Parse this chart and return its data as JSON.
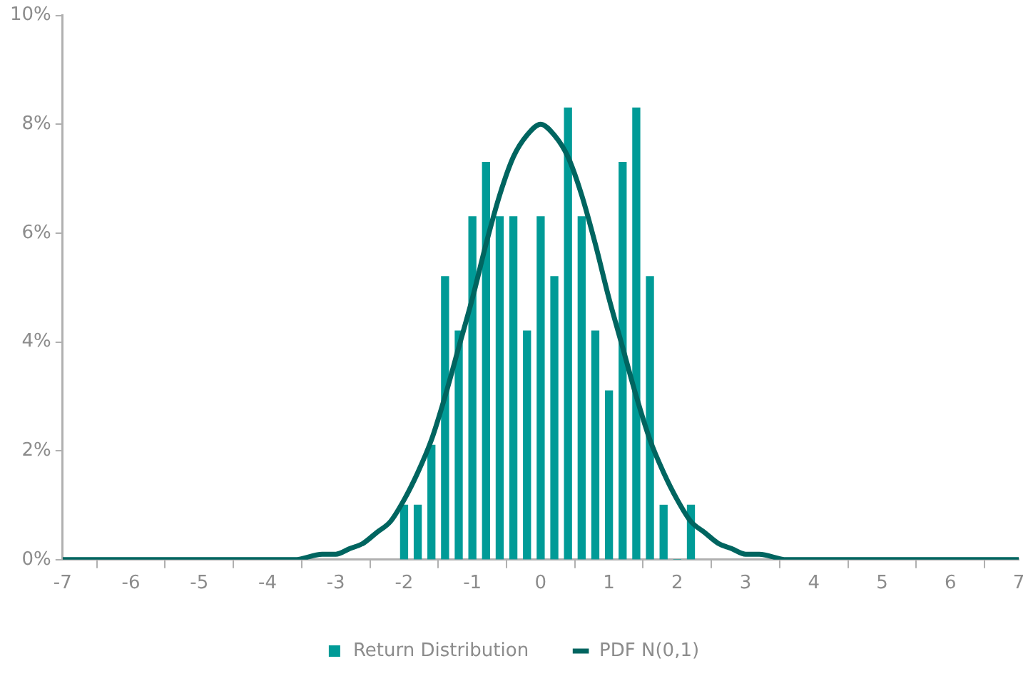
{
  "chart_data": {
    "type": "bar",
    "xlim": [
      -7,
      7
    ],
    "xticks": [
      -7,
      -6,
      -5,
      -4,
      -3,
      -2,
      -1,
      0,
      1,
      2,
      3,
      4,
      5,
      6,
      7
    ],
    "ylim": [
      0,
      10
    ],
    "yticks": [
      {
        "value": 0,
        "label": "0%"
      },
      {
        "value": 2,
        "label": "2%"
      },
      {
        "value": 4,
        "label": "4%"
      },
      {
        "value": 6,
        "label": "6%"
      },
      {
        "value": 8,
        "label": "8%"
      },
      {
        "value": 10,
        "label": "10%"
      }
    ],
    "grid": false,
    "legend": "bottom",
    "series": [
      {
        "name": "Return Distribution",
        "color": "#009b97",
        "x": [
          -2.0,
          -1.8,
          -1.6,
          -1.4,
          -1.2,
          -1.0,
          -0.8,
          -0.6,
          -0.4,
          -0.2,
          0.0,
          0.2,
          0.4,
          0.6,
          0.8,
          1.0,
          1.2,
          1.4,
          1.6,
          1.8,
          2.0,
          2.2
        ],
        "values": [
          1.0,
          1.0,
          2.1,
          5.2,
          4.2,
          6.3,
          7.3,
          6.3,
          6.3,
          4.2,
          6.3,
          5.2,
          8.3,
          6.3,
          4.2,
          3.1,
          7.3,
          8.3,
          5.2,
          1.0,
          0,
          1.0
        ]
      },
      {
        "name": "PDF N(0,1)",
        "type": "line",
        "color": "#006560",
        "marker": "none",
        "line_style": "solid",
        "x": [
          -7,
          -6,
          -5,
          -4,
          -3.6,
          -3.2,
          -3.0,
          -2.8,
          -2.6,
          -2.4,
          -2.2,
          -2.0,
          -1.8,
          -1.6,
          -1.4,
          -1.2,
          -1.0,
          -0.8,
          -0.6,
          -0.4,
          -0.2,
          0,
          0.2,
          0.4,
          0.6,
          0.8,
          1.0,
          1.2,
          1.4,
          1.6,
          1.8,
          2.0,
          2.2,
          2.4,
          2.6,
          2.8,
          3.0,
          3.2,
          3.6,
          4,
          5,
          6,
          7
        ],
        "values": [
          0,
          0,
          0,
          0,
          0.0,
          0.1,
          0.1,
          0.2,
          0.3,
          0.5,
          0.7,
          1.1,
          1.6,
          2.2,
          3.0,
          3.9,
          4.8,
          5.8,
          6.7,
          7.4,
          7.8,
          8.0,
          7.8,
          7.4,
          6.7,
          5.8,
          4.8,
          3.9,
          3.0,
          2.2,
          1.6,
          1.1,
          0.7,
          0.5,
          0.3,
          0.2,
          0.1,
          0.1,
          0.0,
          0,
          0,
          0,
          0
        ]
      }
    ]
  }
}
